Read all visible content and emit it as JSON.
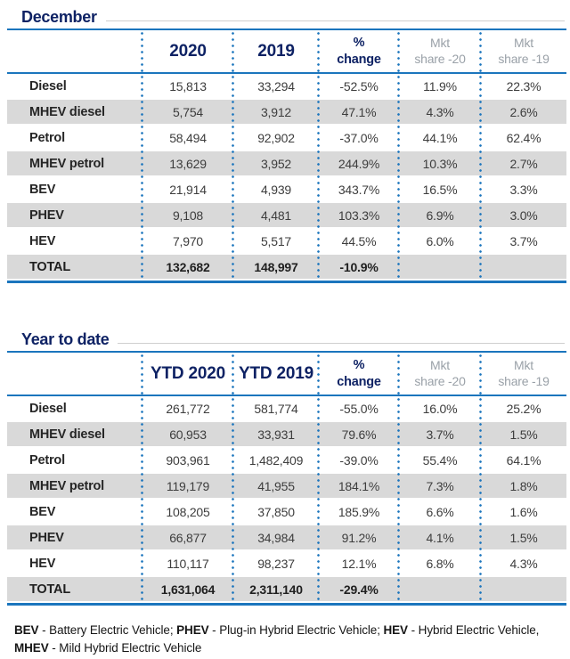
{
  "colors": {
    "title_navy": "#0e2264",
    "rule_blue": "#1b75bd",
    "stripe_gray": "#d9d9d9",
    "header_gray_text": "#9aa1a8"
  },
  "chart_data": [
    {
      "type": "table",
      "title": "December",
      "total_label": "TOTAL",
      "columns": [
        "",
        "2020",
        "2019",
        "%\nchange",
        "Mkt\nshare -20",
        "Mkt\nshare -19"
      ],
      "rows": [
        [
          "Diesel",
          "15,813",
          "33,294",
          "-52.5%",
          "11.9%",
          "22.3%"
        ],
        [
          "MHEV diesel",
          "5,754",
          "3,912",
          "47.1%",
          "4.3%",
          "2.6%"
        ],
        [
          "Petrol",
          "58,494",
          "92,902",
          "-37.0%",
          "44.1%",
          "62.4%"
        ],
        [
          "MHEV petrol",
          "13,629",
          "3,952",
          "244.9%",
          "10.3%",
          "2.7%"
        ],
        [
          "BEV",
          "21,914",
          "4,939",
          "343.7%",
          "16.5%",
          "3.3%"
        ],
        [
          "PHEV",
          "9,108",
          "4,481",
          "103.3%",
          "6.9%",
          "3.0%"
        ],
        [
          "HEV",
          "7,970",
          "5,517",
          "44.5%",
          "6.0%",
          "3.7%"
        ],
        [
          "TOTAL",
          "132,682",
          "148,997",
          "-10.9%",
          "",
          ""
        ]
      ]
    },
    {
      "type": "table",
      "title": "Year to date",
      "total_label": "TOTAL",
      "columns": [
        "",
        "YTD 2020",
        "YTD 2019",
        "%\nchange",
        "Mkt\nshare -20",
        "Mkt\nshare -19"
      ],
      "rows": [
        [
          "Diesel",
          "261,772",
          "581,774",
          "-55.0%",
          "16.0%",
          "25.2%"
        ],
        [
          "MHEV diesel",
          "60,953",
          "33,931",
          "79.6%",
          "3.7%",
          "1.5%"
        ],
        [
          "Petrol",
          "903,961",
          "1,482,409",
          "-39.0%",
          "55.4%",
          "64.1%"
        ],
        [
          "MHEV petrol",
          "119,179",
          "41,955",
          "184.1%",
          "7.3%",
          "1.8%"
        ],
        [
          "BEV",
          "108,205",
          "37,850",
          "185.9%",
          "6.6%",
          "1.6%"
        ],
        [
          "PHEV",
          "66,877",
          "34,984",
          "91.2%",
          "4.1%",
          "1.5%"
        ],
        [
          "HEV",
          "110,117",
          "98,237",
          "12.1%",
          "6.8%",
          "4.3%"
        ],
        [
          "TOTAL",
          "1,631,064",
          "2,311,140",
          "-29.4%",
          "",
          ""
        ]
      ]
    }
  ],
  "footnote": {
    "parts": [
      {
        "bold": "BEV",
        "text": " - Battery Electric Vehicle; "
      },
      {
        "bold": "PHEV",
        "text": " - Plug-in Hybrid Electric Vehicle; "
      },
      {
        "bold": "HEV",
        "text": " - Hybrid Electric Vehicle, "
      },
      {
        "bold": "MHEV",
        "text": " - Mild Hybrid Electric Vehicle"
      }
    ]
  }
}
